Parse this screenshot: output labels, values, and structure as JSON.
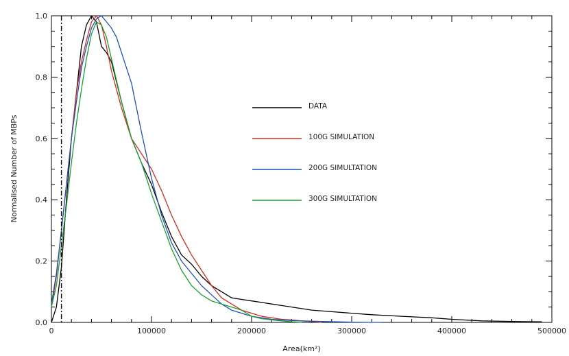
{
  "chart_data": {
    "type": "line",
    "title": "",
    "xlabel": "Area(km²)",
    "ylabel": "Normalised Number of MBPs",
    "xlim": [
      0,
      500000
    ],
    "ylim": [
      0,
      1.0
    ],
    "xticks": [
      0,
      100000,
      200000,
      300000,
      400000,
      500000
    ],
    "xtick_labels": [
      "0",
      "100000",
      "200000",
      "300000",
      "400000",
      "500000"
    ],
    "yticks": [
      0,
      0.2,
      0.4,
      0.6,
      0.8,
      1.0
    ],
    "ytick_labels": [
      "0.0",
      "0.2",
      "0.4",
      "0.6",
      "0.8",
      "1.0"
    ],
    "grid": false,
    "legend_position": "center-right",
    "reference_line": {
      "x": 10000,
      "style": "dash-dot",
      "color": "#000000"
    },
    "series": [
      {
        "name": "DATA",
        "color": "#000000",
        "x": [
          0,
          5000,
          10000,
          15000,
          20000,
          25000,
          30000,
          35000,
          40000,
          45000,
          50000,
          55000,
          60000,
          70000,
          80000,
          90000,
          100000,
          110000,
          120000,
          130000,
          140000,
          150000,
          160000,
          170000,
          180000,
          190000,
          200000,
          210000,
          220000,
          230000,
          240000,
          250000,
          260000,
          280000,
          300000,
          320000,
          350000,
          380000,
          400000,
          430000,
          460000,
          490000
        ],
        "y": [
          0.0,
          0.05,
          0.18,
          0.4,
          0.6,
          0.75,
          0.9,
          0.97,
          1.0,
          0.98,
          0.9,
          0.88,
          0.85,
          0.72,
          0.6,
          0.52,
          0.45,
          0.36,
          0.28,
          0.22,
          0.19,
          0.15,
          0.12,
          0.1,
          0.08,
          0.075,
          0.07,
          0.065,
          0.06,
          0.055,
          0.05,
          0.045,
          0.04,
          0.035,
          0.03,
          0.025,
          0.02,
          0.015,
          0.01,
          0.005,
          0.003,
          0.002
        ]
      },
      {
        "name": "100G SIMULATION",
        "color": "#d42a1e",
        "x": [
          0,
          5000,
          10000,
          15000,
          20000,
          25000,
          30000,
          35000,
          40000,
          45000,
          50000,
          55000,
          60000,
          70000,
          80000,
          90000,
          100000,
          110000,
          120000,
          130000,
          140000,
          150000,
          160000,
          170000,
          180000,
          190000,
          200000,
          210000,
          220000,
          230000,
          240000,
          250000,
          260000,
          270000
        ],
        "y": [
          0.05,
          0.15,
          0.3,
          0.45,
          0.6,
          0.75,
          0.85,
          0.92,
          0.98,
          1.0,
          0.97,
          0.9,
          0.82,
          0.7,
          0.6,
          0.55,
          0.5,
          0.43,
          0.35,
          0.28,
          0.22,
          0.17,
          0.12,
          0.08,
          0.06,
          0.04,
          0.03,
          0.02,
          0.015,
          0.01,
          0.008,
          0.005,
          0.003,
          0.0
        ]
      },
      {
        "name": "200G SIMULTATION",
        "color": "#1f4fb5",
        "x": [
          0,
          5000,
          10000,
          15000,
          20000,
          25000,
          30000,
          35000,
          40000,
          45000,
          50000,
          55000,
          60000,
          65000,
          70000,
          80000,
          90000,
          100000,
          110000,
          120000,
          130000,
          140000,
          150000,
          160000,
          170000,
          180000,
          190000,
          200000,
          210000,
          220000,
          230000,
          240000,
          250000,
          270000,
          300000,
          330000
        ],
        "y": [
          0.06,
          0.16,
          0.3,
          0.45,
          0.6,
          0.72,
          0.83,
          0.9,
          0.96,
          0.99,
          1.0,
          0.98,
          0.96,
          0.93,
          0.88,
          0.78,
          0.62,
          0.47,
          0.35,
          0.26,
          0.2,
          0.16,
          0.12,
          0.09,
          0.06,
          0.04,
          0.03,
          0.02,
          0.015,
          0.01,
          0.008,
          0.006,
          0.005,
          0.003,
          0.001,
          0.0
        ]
      },
      {
        "name": "300G SIMULTATION",
        "color": "#18a032",
        "x": [
          0,
          5000,
          10000,
          15000,
          20000,
          25000,
          30000,
          35000,
          40000,
          45000,
          50000,
          55000,
          60000,
          70000,
          80000,
          90000,
          100000,
          110000,
          120000,
          130000,
          140000,
          150000,
          160000,
          170000,
          180000,
          190000,
          200000,
          210000,
          220000,
          230000,
          240000,
          250000
        ],
        "y": [
          0.05,
          0.12,
          0.25,
          0.38,
          0.52,
          0.65,
          0.76,
          0.86,
          0.94,
          0.98,
          0.97,
          0.93,
          0.86,
          0.72,
          0.6,
          0.52,
          0.42,
          0.33,
          0.24,
          0.17,
          0.12,
          0.09,
          0.07,
          0.06,
          0.05,
          0.04,
          0.02,
          0.012,
          0.008,
          0.005,
          0.002,
          0.0
        ]
      }
    ]
  }
}
